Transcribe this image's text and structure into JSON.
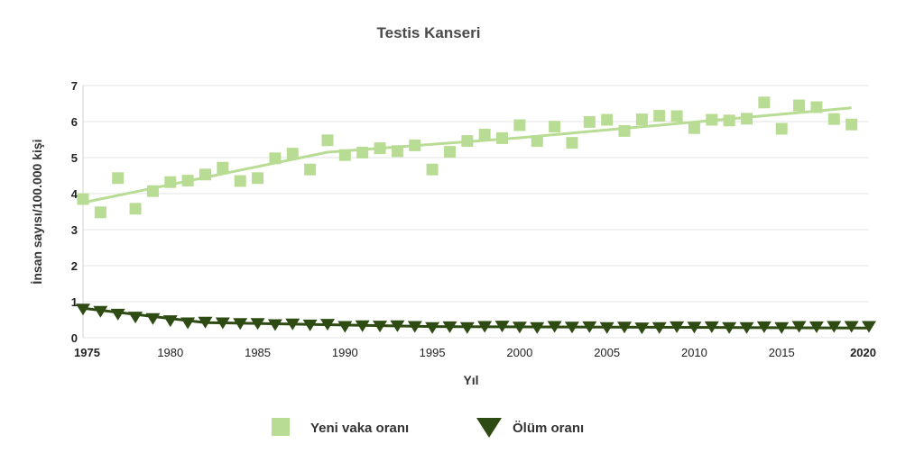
{
  "chart_data": {
    "type": "scatter",
    "title": "Testis Kanseri",
    "xlabel": "Yıl",
    "ylabel": "İnsan sayısı/100.000 kişi",
    "xlim": [
      1975,
      2020
    ],
    "ylim": [
      0,
      7
    ],
    "x_ticks": [
      {
        "value": 1975,
        "label": "1975",
        "bold": true
      },
      {
        "value": 1980,
        "label": "1980",
        "bold": false
      },
      {
        "value": 1985,
        "label": "1985",
        "bold": false
      },
      {
        "value": 1990,
        "label": "1990",
        "bold": false
      },
      {
        "value": 1995,
        "label": "1995",
        "bold": false
      },
      {
        "value": 2000,
        "label": "2000",
        "bold": false
      },
      {
        "value": 2005,
        "label": "2005",
        "bold": false
      },
      {
        "value": 2010,
        "label": "2010",
        "bold": false
      },
      {
        "value": 2015,
        "label": "2015",
        "bold": false
      },
      {
        "value": 2020,
        "label": "2020",
        "bold": true
      }
    ],
    "y_ticks": [
      "0",
      "1",
      "2",
      "3",
      "4",
      "5",
      "6",
      "7"
    ],
    "grid": true,
    "legend_position": "bottom",
    "series": [
      {
        "name": "Yeni vaka oranı",
        "marker": "square",
        "color": "#b8dc94",
        "x": [
          1975,
          1976,
          1977,
          1978,
          1979,
          1980,
          1981,
          1982,
          1983,
          1984,
          1985,
          1986,
          1987,
          1988,
          1989,
          1990,
          1991,
          1992,
          1993,
          1994,
          1995,
          1996,
          1997,
          1998,
          1999,
          2000,
          2001,
          2002,
          2003,
          2004,
          2005,
          2006,
          2007,
          2008,
          2009,
          2010,
          2011,
          2012,
          2013,
          2014,
          2015,
          2016,
          2017,
          2018,
          2019
        ],
        "y": [
          3.85,
          3.48,
          4.43,
          3.58,
          4.07,
          4.32,
          4.36,
          4.53,
          4.72,
          4.35,
          4.43,
          4.98,
          5.11,
          4.67,
          5.48,
          5.07,
          5.14,
          5.26,
          5.18,
          5.34,
          4.67,
          5.16,
          5.46,
          5.64,
          5.54,
          5.9,
          5.46,
          5.86,
          5.41,
          5.99,
          6.05,
          5.74,
          6.06,
          6.16,
          6.15,
          5.82,
          6.05,
          6.03,
          6.08,
          6.53,
          5.8,
          6.45,
          6.4,
          6.07,
          5.92
        ]
      },
      {
        "name": "Ölüm oranı",
        "marker": "triangle-down",
        "color": "#2d4b12",
        "x": [
          1975,
          1976,
          1977,
          1978,
          1979,
          1980,
          1981,
          1982,
          1983,
          1984,
          1985,
          1986,
          1987,
          1988,
          1989,
          1990,
          1991,
          1992,
          1993,
          1994,
          1995,
          1996,
          1997,
          1998,
          1999,
          2000,
          2001,
          2002,
          2003,
          2004,
          2005,
          2006,
          2007,
          2008,
          2009,
          2010,
          2011,
          2012,
          2013,
          2014,
          2015,
          2016,
          2017,
          2018,
          2019,
          2020
        ],
        "y": [
          0.78,
          0.72,
          0.64,
          0.56,
          0.52,
          0.46,
          0.4,
          0.42,
          0.4,
          0.38,
          0.38,
          0.35,
          0.37,
          0.34,
          0.36,
          0.3,
          0.32,
          0.31,
          0.32,
          0.3,
          0.27,
          0.29,
          0.27,
          0.3,
          0.31,
          0.28,
          0.27,
          0.3,
          0.28,
          0.29,
          0.27,
          0.28,
          0.26,
          0.27,
          0.29,
          0.28,
          0.29,
          0.27,
          0.27,
          0.29,
          0.27,
          0.3,
          0.29,
          0.3,
          0.3,
          0.3
        ]
      }
    ],
    "trendlines": [
      {
        "series": "Yeni vaka oranı",
        "color": "#b8dc94",
        "points": [
          [
            1975,
            3.75
          ],
          [
            1989,
            5.15
          ],
          [
            2000,
            5.55
          ],
          [
            2019,
            6.38
          ]
        ]
      },
      {
        "series": "Ölüm oranı",
        "color": "#2d4b12",
        "points": [
          [
            1975,
            0.82
          ],
          [
            1982,
            0.42
          ],
          [
            1995,
            0.31
          ],
          [
            2020,
            0.27
          ]
        ]
      }
    ]
  }
}
